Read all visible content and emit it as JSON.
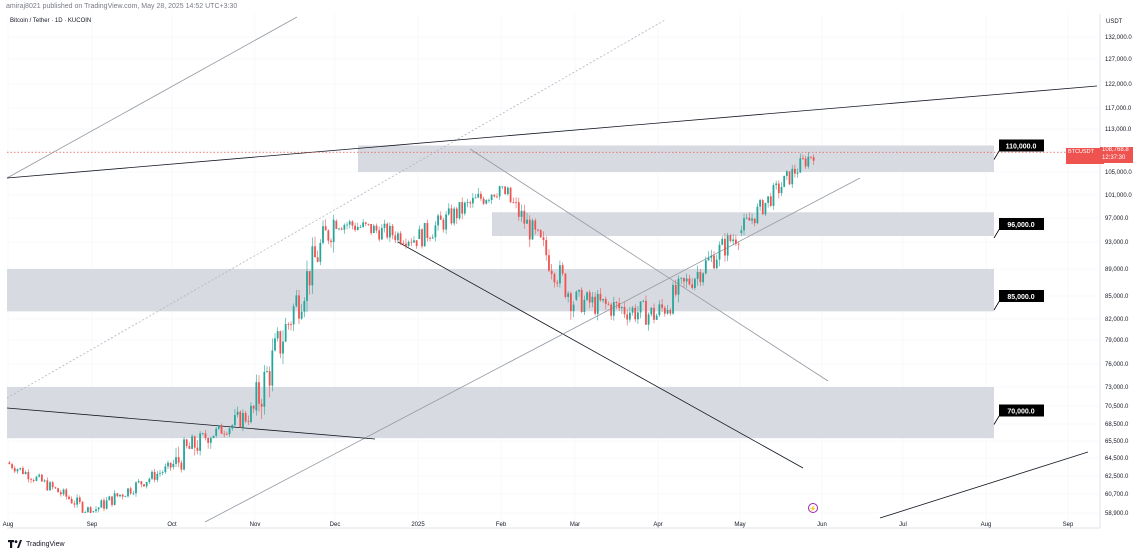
{
  "header": {
    "published": "amiraj8021 published on TradingView.com, May 28, 2025 14:52 UTC+3:30",
    "symbol": "Bitcoin / Tether · 1D · KUCOIN",
    "currency": "USDT"
  },
  "footer": {
    "brand": "TradingView"
  },
  "price_badge": {
    "ticker": "BTCUSDT",
    "price": "108,768.8",
    "countdown": "12:37:30"
  },
  "colors": {
    "up": "#26a69a",
    "down": "#ef5350",
    "zone": "#d1d4dc",
    "label_bg": "#000000",
    "price_line": "#ef5350"
  },
  "chart_data": {
    "type": "candlestick",
    "title": "Bitcoin / Tether · 1D · KUCOIN",
    "y_axis_labels": [
      "132,000.0",
      "127,000.0",
      "122,000.0",
      "117,000.0",
      "113,000.0",
      "109,000.0",
      "105,000.0",
      "101,000.0",
      "97,000.0",
      "93,000.0",
      "89,000.0",
      "85,000.0",
      "82,000.0",
      "79,000.0",
      "76,000.0",
      "73,000.0",
      "70,500.0",
      "68,500.0",
      "65,500.0",
      "64,500.0",
      "62,500.0",
      "60,700.0",
      "58,900.0"
    ],
    "y_axis_values": [
      132000,
      127000,
      122000,
      117000,
      113000,
      109000,
      105000,
      101000,
      97000,
      93000,
      89000,
      85000,
      82000,
      79000,
      76000,
      73000,
      70500,
      68500,
      65500,
      64500,
      62500,
      60700,
      58900
    ],
    "x_axis_labels": [
      "Aug",
      "Sep",
      "Oct",
      "Nov",
      "Dec",
      "2025",
      "Feb",
      "Mar",
      "Apr",
      "May",
      "Jun",
      "Jul",
      "Aug",
      "Sep"
    ],
    "last_price": 108768.8,
    "levels": [
      {
        "label": "110,000.0",
        "value": 110000,
        "zone": [
          105000,
          110000
        ]
      },
      {
        "label": "96,000.0",
        "value": 96000,
        "zone": [
          94000,
          98000
        ]
      },
      {
        "label": "85,000.0",
        "value": 85000,
        "zone": [
          83000,
          89000
        ]
      },
      {
        "label": "70,000.0",
        "value": 70000,
        "zone": [
          66000,
          73000
        ]
      }
    ],
    "candles_monthly_approx": [
      {
        "month": "Aug 2024",
        "open": 64000,
        "high": 65500,
        "low": 58900,
        "close": 59000
      },
      {
        "month": "Sep 2024",
        "open": 59000,
        "high": 66000,
        "low": 58900,
        "close": 63500
      },
      {
        "month": "Oct 2024",
        "open": 63500,
        "high": 73000,
        "low": 59000,
        "close": 70000
      },
      {
        "month": "Nov 2024",
        "open": 70000,
        "high": 99500,
        "low": 66500,
        "close": 96500
      },
      {
        "month": "Dec 2024",
        "open": 96500,
        "high": 108500,
        "low": 92000,
        "close": 93500
      },
      {
        "month": "Jan 2025",
        "open": 93500,
        "high": 109500,
        "low": 89500,
        "close": 102500
      },
      {
        "month": "Feb 2025",
        "open": 102500,
        "high": 102500,
        "low": 78500,
        "close": 84500
      },
      {
        "month": "Mar 2025",
        "open": 84500,
        "high": 95000,
        "low": 77000,
        "close": 82500
      },
      {
        "month": "Apr 2025",
        "open": 82500,
        "high": 95500,
        "low": 74500,
        "close": 94500
      },
      {
        "month": "May 2025",
        "open": 94500,
        "high": 112000,
        "low": 93500,
        "close": 108768.8
      }
    ]
  }
}
